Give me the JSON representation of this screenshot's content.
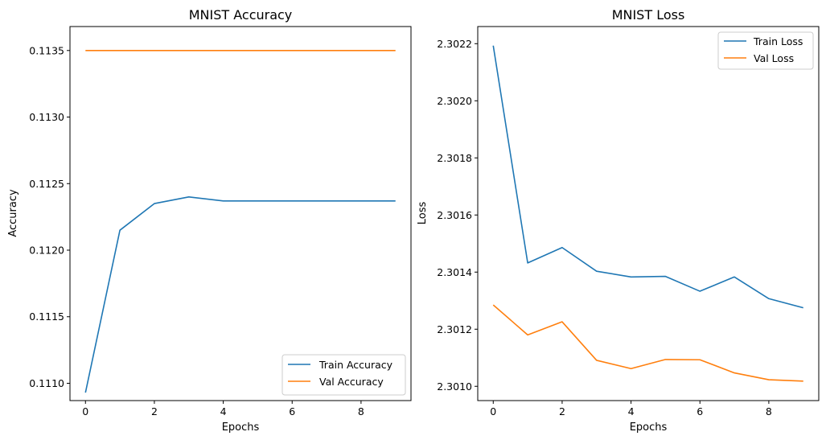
{
  "chart_data": [
    {
      "type": "line",
      "title": "MNIST Accuracy",
      "xlabel": "Epochs",
      "ylabel": "Accuracy",
      "x": [
        0,
        1,
        2,
        3,
        4,
        5,
        6,
        7,
        8,
        9
      ],
      "xlim": [
        -0.45,
        9.45
      ],
      "ylim": [
        0.11087,
        0.11368
      ],
      "xticks": [
        0,
        2,
        4,
        6,
        8
      ],
      "xtick_labels": [
        "0",
        "2",
        "4",
        "6",
        "8"
      ],
      "yticks": [
        0.111,
        0.1115,
        0.112,
        0.1125,
        0.113,
        0.1135
      ],
      "ytick_labels": [
        "0.1110",
        "0.1115",
        "0.1120",
        "0.1125",
        "0.1130",
        "0.1135"
      ],
      "grid": false,
      "legend_position": "lower-right",
      "series": [
        {
          "name": "Train Accuracy",
          "color": "#1f77b4",
          "values": [
            0.11093,
            0.11215,
            0.11235,
            0.1124,
            0.11237,
            0.11237,
            0.11237,
            0.11237,
            0.11237,
            0.11237
          ]
        },
        {
          "name": "Val Accuracy",
          "color": "#ff7f0e",
          "values": [
            0.1135,
            0.1135,
            0.1135,
            0.1135,
            0.1135,
            0.1135,
            0.1135,
            0.1135,
            0.1135,
            0.1135
          ]
        }
      ]
    },
    {
      "type": "line",
      "title": "MNIST Loss",
      "xlabel": "Epochs",
      "ylabel": "Loss",
      "x": [
        0,
        1,
        2,
        3,
        4,
        5,
        6,
        7,
        8,
        9
      ],
      "xlim": [
        -0.45,
        9.45
      ],
      "ylim": [
        2.30095,
        2.30226
      ],
      "xticks": [
        0,
        2,
        4,
        6,
        8
      ],
      "xtick_labels": [
        "0",
        "2",
        "4",
        "6",
        "8"
      ],
      "yticks": [
        2.301,
        2.3012,
        2.3014,
        2.3016,
        2.3018,
        2.302,
        2.3022
      ],
      "ytick_labels": [
        "2.3010",
        "2.3012",
        "2.3014",
        "2.3016",
        "2.3018",
        "2.3020",
        "2.3022"
      ],
      "grid": false,
      "legend_position": "upper-right",
      "series": [
        {
          "name": "Train Loss",
          "color": "#1f77b4",
          "values": [
            2.302193,
            2.301432,
            2.301486,
            2.301403,
            2.301383,
            2.301385,
            2.301333,
            2.301383,
            2.301307,
            2.301275
          ]
        },
        {
          "name": "Val Loss",
          "color": "#ff7f0e",
          "values": [
            2.301285,
            2.30118,
            2.301226,
            2.301091,
            2.301062,
            2.301094,
            2.301093,
            2.301047,
            2.301023,
            2.301018
          ]
        }
      ]
    }
  ]
}
